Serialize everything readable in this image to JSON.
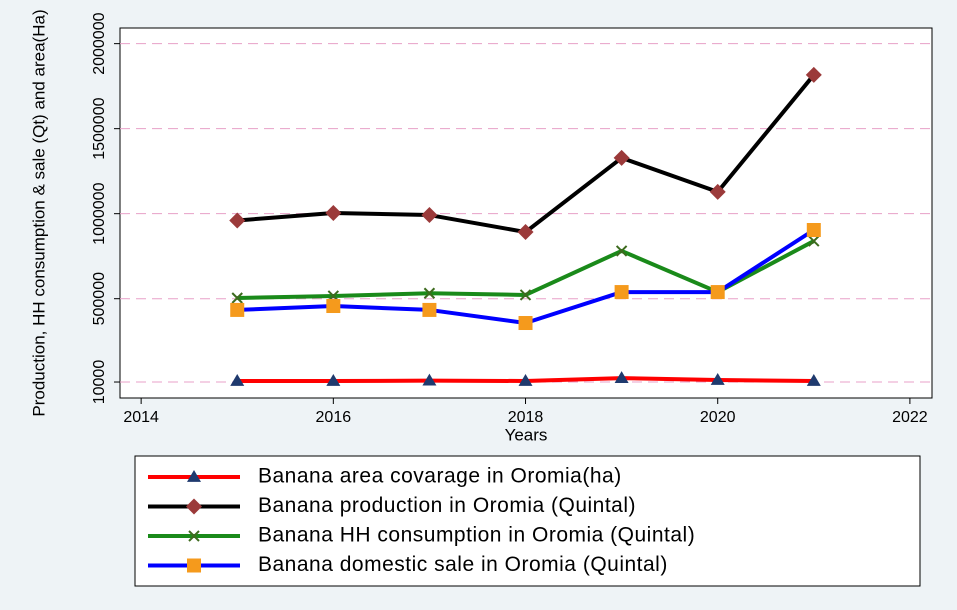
{
  "chart_data": {
    "type": "line",
    "y_label": "Production, HH consumption & sale (Qt) and area(Ha)",
    "x_label": "Years",
    "x": [
      2015,
      2016,
      2017,
      2018,
      2019,
      2020,
      2021
    ],
    "series": [
      {
        "name": "Banana area covarage in Oromia(ha)",
        "color": "#ff0000",
        "marker": "triangle",
        "marker_color": "#1f3a6e",
        "values": [
          16000,
          16000,
          18000,
          16000,
          33000,
          22000,
          16000
        ]
      },
      {
        "name": "Banana production in Oromia (Quintal)",
        "color": "#000000",
        "marker": "diamond",
        "marker_color": "#9b3a3a",
        "values": [
          960000,
          1004000,
          992000,
          892000,
          1328000,
          1128000,
          1816000
        ]
      },
      {
        "name": "Banana HH consumption in Oromia (Quintal)",
        "color": "#1a8a1a",
        "marker": "x",
        "marker_color": "#3d6b1e",
        "values": [
          504000,
          516000,
          532000,
          522000,
          781000,
          539000,
          839000
        ]
      },
      {
        "name": "Banana domestic sale in Oromia (Quintal)",
        "color": "#0000ff",
        "marker": "square",
        "marker_color": "#f59a1c",
        "values": [
          434000,
          457000,
          434000,
          357000,
          539000,
          539000,
          904000
        ]
      }
    ],
    "xlim": [
      2013.78,
      2022.23
    ],
    "xticks": [
      2014,
      2016,
      2018,
      2020,
      2022
    ],
    "ylim": [
      -84000,
      2092000
    ],
    "yticks": [
      10000,
      500000,
      1000000,
      1500000,
      2000000
    ],
    "grid": true,
    "grid_color": "#e8a0c8",
    "legend": "bottom"
  }
}
